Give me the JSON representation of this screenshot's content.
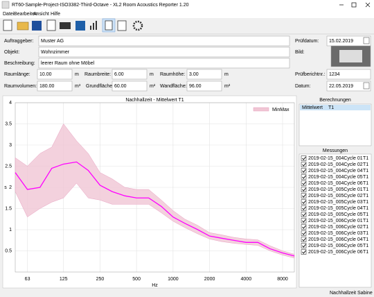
{
  "window": {
    "title": "RT60-Sample-Project-ISO3382-Third-Octave - XL2 Room Acoustics Reporter 1.20"
  },
  "menu": [
    "Datei",
    "Bearbeiten",
    "Ansicht",
    "Hilfe"
  ],
  "form": {
    "client": {
      "label": "Auftraggeber:",
      "value": "Muster AG"
    },
    "object": {
      "label": "Objekt:",
      "value": "Wohnzimmer"
    },
    "description": {
      "label": "Beschreibung:",
      "value": "leerer Raum ohne Möbel"
    },
    "length": {
      "label": "Raumlänge:",
      "value": "10.00",
      "unit": "m"
    },
    "width": {
      "label": "Raumbreite:",
      "value": "6.00",
      "unit": "m"
    },
    "height": {
      "label": "Raumhöhe:",
      "value": "3.00",
      "unit": "m"
    },
    "volume": {
      "label": "Raumvolumen:",
      "value": "180.00",
      "unit": "m³"
    },
    "floor": {
      "label": "Grundfläche:",
      "value": "60.00",
      "unit": "m²"
    },
    "wall": {
      "label": "Wandfläche:",
      "value": "96.00",
      "unit": "m²"
    },
    "test_date": {
      "label": "Prüfdatum:",
      "value": "15.02.2019"
    },
    "image": {
      "label": "Bild:"
    },
    "report_no": {
      "label": "Prüfberichtnr.:",
      "value": "1234"
    },
    "date": {
      "label": "Datum:",
      "value": "22.05.2019"
    }
  },
  "chart_data": {
    "type": "line",
    "title": "Nachhallzeit - Mittelwert T1",
    "xlabel": "Hz",
    "ylabel": "s",
    "log_x": true,
    "grid": true,
    "legend": "top-right",
    "x": [
      50,
      63,
      80,
      100,
      125,
      160,
      200,
      250,
      315,
      400,
      500,
      630,
      800,
      1000,
      1250,
      1600,
      2000,
      2500,
      3150,
      4000,
      5000,
      6300,
      8000,
      10000
    ],
    "xlim": [
      50,
      10000
    ],
    "xticks": [
      63,
      125,
      250,
      500,
      1000,
      2000,
      4000,
      8000
    ],
    "ylim": [
      0,
      4
    ],
    "yticks": [
      0.5,
      1,
      1.5,
      2,
      2.5,
      3,
      3.5,
      4
    ],
    "band": {
      "name": "MinMax",
      "color": "#f0c6d4",
      "lower": [
        1.9,
        1.3,
        1.5,
        1.65,
        1.75,
        2.1,
        1.75,
        1.7,
        1.6,
        1.6,
        1.6,
        1.6,
        1.4,
        1.2,
        1.05,
        0.9,
        0.78,
        0.72,
        0.68,
        0.65,
        0.63,
        0.5,
        0.4,
        0.33
      ],
      "upper": [
        2.7,
        2.5,
        2.8,
        2.95,
        3.5,
        3.1,
        2.8,
        2.35,
        2.2,
        2.0,
        1.95,
        1.95,
        1.7,
        1.45,
        1.25,
        1.1,
        0.93,
        0.88,
        0.82,
        0.78,
        0.76,
        0.62,
        0.5,
        0.42
      ]
    },
    "line": {
      "color": "#ff00ff",
      "values": [
        2.35,
        1.95,
        2.0,
        2.45,
        2.55,
        2.6,
        2.4,
        2.05,
        1.9,
        1.8,
        1.75,
        1.75,
        1.55,
        1.3,
        1.15,
        1.0,
        0.85,
        0.8,
        0.75,
        0.7,
        0.7,
        0.55,
        0.45,
        0.38
      ]
    }
  },
  "calculations": {
    "title": "Berechnungen",
    "items": [
      {
        "name": "Mittelwert",
        "param": "T1"
      }
    ]
  },
  "measurements": {
    "title": "Messungen",
    "items": [
      {
        "name": "2019-02-15_004Cycle 01",
        "param": "T1"
      },
      {
        "name": "2019-02-15_004Cycle 02",
        "param": "T1"
      },
      {
        "name": "2019-02-15_004Cycle 04",
        "param": "T1"
      },
      {
        "name": "2019-02-15_004Cycle 05",
        "param": "T1"
      },
      {
        "name": "2019-02-15_004Cycle 06",
        "param": "T1"
      },
      {
        "name": "2019-02-15_005Cycle 01",
        "param": "T1"
      },
      {
        "name": "2019-02-15_005Cycle 02",
        "param": "T1"
      },
      {
        "name": "2019-02-15_005Cycle 03",
        "param": "T1"
      },
      {
        "name": "2019-02-15_005Cycle 04",
        "param": "T1"
      },
      {
        "name": "2019-02-15_005Cycle 05",
        "param": "T1"
      },
      {
        "name": "2019-02-15_006Cycle 01",
        "param": "T1"
      },
      {
        "name": "2019-02-15_006Cycle 02",
        "param": "T1"
      },
      {
        "name": "2019-02-15_006Cycle 03",
        "param": "T1"
      },
      {
        "name": "2019-02-15_006Cycle 04",
        "param": "T1"
      },
      {
        "name": "2019-02-15_006Cycle 05",
        "param": "T1"
      },
      {
        "name": "2019-02-15_006Cycle 06",
        "param": "T1"
      }
    ]
  },
  "status": [
    "Nachhallzeit",
    "Sabine"
  ]
}
